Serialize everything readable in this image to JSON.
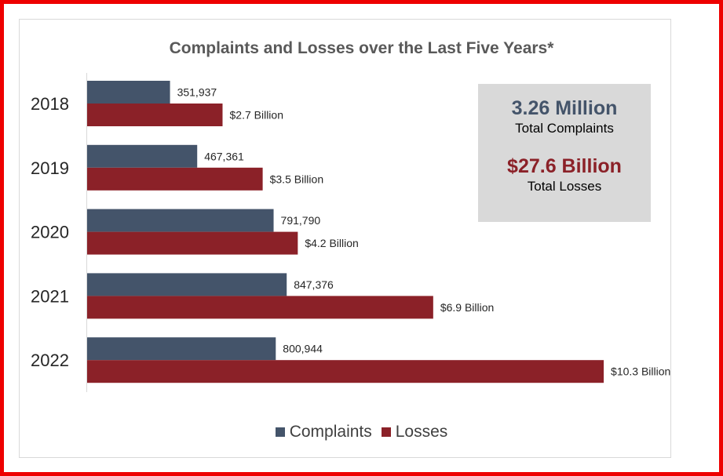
{
  "chart_data": {
    "type": "bar",
    "orientation": "horizontal",
    "title": "Complaints and Losses over the Last Five Years*",
    "categories": [
      "2018",
      "2019",
      "2020",
      "2021",
      "2022"
    ],
    "series": [
      {
        "name": "Complaints",
        "color": "#44546a",
        "values": [
          351937,
          467361,
          791790,
          847376,
          800944
        ],
        "labels": [
          "351,937",
          "467,361",
          "791,790",
          "847,376",
          "800,944"
        ],
        "scale_max": 2300000
      },
      {
        "name": "Losses",
        "color": "#8b2128",
        "values": [
          2.7,
          3.5,
          4.2,
          6.9,
          10.3
        ],
        "labels": [
          "$2.7 Billion",
          "$3.5 Billion",
          "$4.2 Billion",
          "$6.9 Billion",
          "$10.3 Billion"
        ],
        "unit": "billion USD",
        "scale_max": 10.8
      }
    ],
    "grid": false,
    "legend": "bottom"
  },
  "summary": {
    "complaints_value": "3.26 Million",
    "complaints_label": "Total Complaints",
    "losses_value": "$27.6 Billion",
    "losses_label": "Total Losses",
    "complaints_color": "#44546a",
    "losses_color": "#8b2128"
  }
}
